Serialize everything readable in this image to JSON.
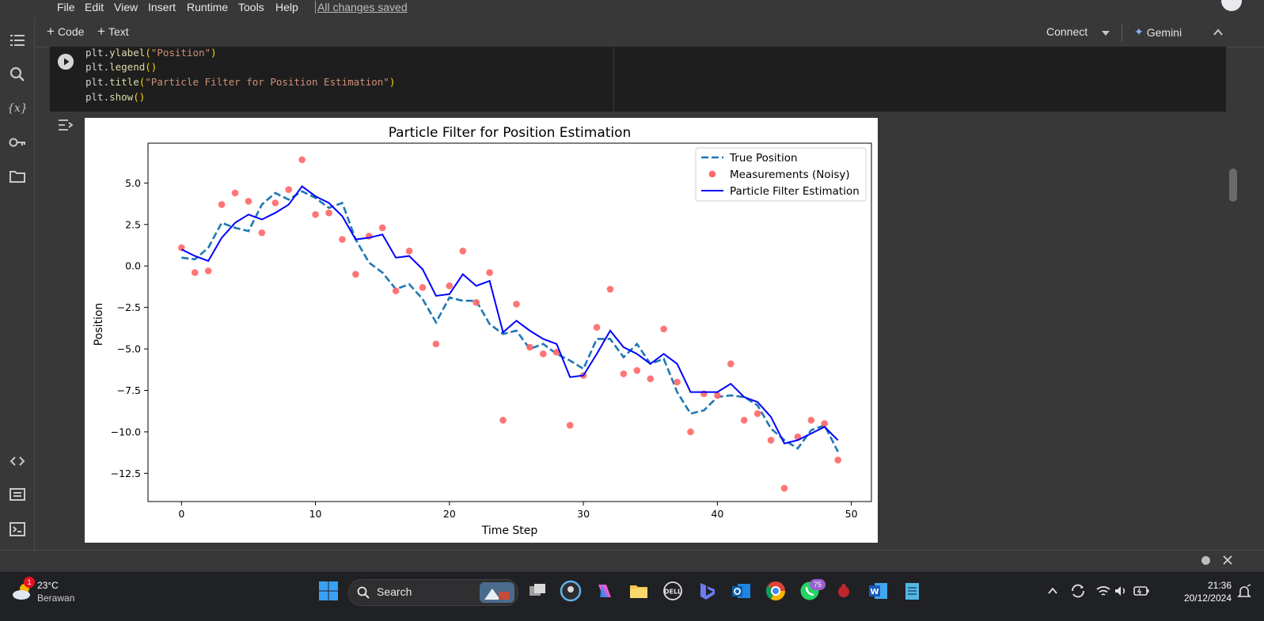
{
  "menu": {
    "items": [
      "File",
      "Edit",
      "View",
      "Insert",
      "Runtime",
      "Tools",
      "Help"
    ],
    "save_status": "All changes saved"
  },
  "toolbar": {
    "code_label": "Code",
    "text_label": "Text",
    "connect_label": "Connect",
    "gemini_label": "Gemini"
  },
  "sidebar": {
    "icons": [
      "table-of-contents-icon",
      "search-icon",
      "variables-icon",
      "secrets-key-icon",
      "files-folder-icon",
      "code-snippets-icon",
      "command-palette-icon",
      "terminal-icon"
    ]
  },
  "code_cell": {
    "lines": [
      {
        "obj": "plt",
        "fn": "ylabel",
        "arg": "\"Position\""
      },
      {
        "obj": "plt",
        "fn": "legend",
        "arg": ""
      },
      {
        "obj": "plt",
        "fn": "title",
        "arg": "\"Particle Filter for Position Estimation\""
      },
      {
        "obj": "plt",
        "fn": "show",
        "arg": ""
      }
    ]
  },
  "chart_data": {
    "type": "line",
    "title": "Particle Filter for Position Estimation",
    "xlabel": "Time Step",
    "ylabel": "Position",
    "xlim": [
      -2.5,
      51.5
    ],
    "ylim": [
      -14.2,
      7.4
    ],
    "xticks": [
      0,
      10,
      20,
      30,
      40,
      50
    ],
    "yticks": [
      5.0,
      2.5,
      0.0,
      -2.5,
      -5.0,
      -7.5,
      -10.0,
      -12.5
    ],
    "ytick_labels": [
      "5.0",
      "2.5",
      "0.0",
      "−2.5",
      "−5.0",
      "−7.5",
      "−10.0",
      "−12.5"
    ],
    "grid": false,
    "legend_position": "top-right",
    "series": [
      {
        "name": "True Position",
        "style": "dashed",
        "color": "#1f77b4",
        "x": [
          0,
          1,
          2,
          3,
          4,
          5,
          6,
          7,
          8,
          9,
          10,
          11,
          12,
          13,
          14,
          15,
          16,
          17,
          18,
          19,
          20,
          21,
          22,
          23,
          24,
          25,
          26,
          27,
          28,
          29,
          30,
          31,
          32,
          33,
          34,
          35,
          36,
          37,
          38,
          39,
          40,
          41,
          42,
          43,
          44,
          45,
          46,
          47,
          48,
          49
        ],
        "y": [
          0.5,
          0.4,
          1.1,
          2.6,
          2.3,
          2.1,
          3.7,
          4.4,
          4.0,
          4.5,
          4.1,
          3.5,
          3.8,
          1.6,
          0.2,
          -0.4,
          -1.4,
          -1.1,
          -2.0,
          -3.4,
          -1.9,
          -2.1,
          -2.1,
          -3.5,
          -4.1,
          -3.9,
          -5.0,
          -4.7,
          -5.3,
          -5.7,
          -6.2,
          -4.4,
          -4.4,
          -5.5,
          -4.7,
          -5.9,
          -5.6,
          -7.6,
          -8.9,
          -8.7,
          -7.9,
          -7.8,
          -7.9,
          -8.4,
          -9.8,
          -10.5,
          -11.0,
          -9.9,
          -9.6,
          -11.2
        ]
      },
      {
        "name": "Measurements (Noisy)",
        "style": "scatter",
        "color": "#ff6666",
        "x": [
          0,
          1,
          2,
          3,
          4,
          5,
          6,
          7,
          8,
          9,
          10,
          11,
          12,
          13,
          14,
          15,
          16,
          17,
          18,
          19,
          20,
          21,
          22,
          23,
          24,
          25,
          26,
          27,
          28,
          29,
          30,
          31,
          32,
          33,
          34,
          35,
          36,
          37,
          38,
          39,
          40,
          41,
          42,
          43,
          44,
          45,
          46,
          47,
          48,
          49
        ],
        "y": [
          1.1,
          -0.4,
          -0.3,
          3.7,
          4.4,
          3.9,
          2.0,
          3.8,
          4.6,
          6.4,
          3.1,
          3.2,
          1.6,
          -0.5,
          1.8,
          2.3,
          -1.5,
          0.9,
          -1.3,
          -4.7,
          -1.2,
          0.9,
          -2.2,
          -0.4,
          -9.3,
          -2.3,
          -4.9,
          -5.3,
          -5.2,
          -9.6,
          -6.6,
          -3.7,
          -1.4,
          -6.5,
          -6.3,
          -6.8,
          -3.8,
          -7.0,
          -10.0,
          -7.7,
          -7.8,
          -5.9,
          -9.3,
          -8.9,
          -10.5,
          -13.4,
          -10.3,
          -9.3,
          -9.5,
          -11.7
        ]
      },
      {
        "name": "Particle Filter Estimation",
        "style": "solid",
        "color": "#0000ff",
        "x": [
          0,
          1,
          2,
          3,
          4,
          5,
          6,
          7,
          8,
          9,
          10,
          11,
          12,
          13,
          14,
          15,
          16,
          17,
          18,
          19,
          20,
          21,
          22,
          23,
          24,
          25,
          26,
          27,
          28,
          29,
          30,
          31,
          32,
          33,
          34,
          35,
          36,
          37,
          38,
          39,
          40,
          41,
          42,
          43,
          44,
          45,
          46,
          47,
          48,
          49
        ],
        "y": [
          1.0,
          0.6,
          0.3,
          1.7,
          2.6,
          3.1,
          2.8,
          3.2,
          3.7,
          4.8,
          4.2,
          3.8,
          3.0,
          1.6,
          1.7,
          1.9,
          0.5,
          0.6,
          -0.2,
          -1.8,
          -1.7,
          -0.5,
          -1.2,
          -0.9,
          -4.0,
          -3.3,
          -3.9,
          -4.4,
          -4.7,
          -6.7,
          -6.6,
          -5.3,
          -3.9,
          -4.9,
          -5.3,
          -5.9,
          -5.3,
          -5.9,
          -7.6,
          -7.6,
          -7.6,
          -7.1,
          -7.9,
          -8.2,
          -9.1,
          -10.7,
          -10.5,
          -10.1,
          -9.7,
          -10.5
        ]
      }
    ]
  },
  "taskbar": {
    "weather_temp": "23°C",
    "weather_desc": "Berawan",
    "weather_badge": "1",
    "search_label": "Search",
    "whatsapp_badge": "75",
    "time": "21:36",
    "date": "20/12/2024"
  },
  "colors": {
    "accent_gemini": "#8ab4f8",
    "ui_bg": "#383838",
    "cell_bg": "#1e1e1e"
  }
}
